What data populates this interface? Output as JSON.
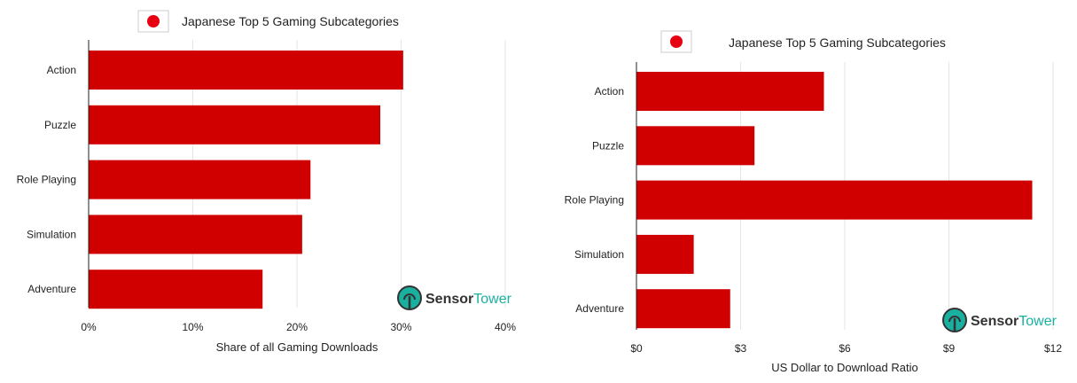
{
  "chart_data": [
    {
      "type": "bar",
      "orientation": "horizontal",
      "title": "Japanese Top 5 Gaming Subcategories",
      "categories": [
        "Action",
        "Puzzle",
        "Role Playing",
        "Simulation",
        "Adventure"
      ],
      "values": [
        30.2,
        28.0,
        21.3,
        20.5,
        16.7
      ],
      "unit": "%",
      "xlabel": "Share of all Gaming Downloads",
      "xlim": [
        0,
        40
      ],
      "xticks": [
        0,
        10,
        20,
        30,
        40
      ],
      "xtick_labels": [
        "0%",
        "10%",
        "20%",
        "30%",
        "40%"
      ],
      "grid": true,
      "bar_color": "#d10000",
      "flag_icon": "japan-flag-icon"
    },
    {
      "type": "bar",
      "orientation": "horizontal",
      "title": "Japanese Top 5 Gaming Subcategories",
      "categories": [
        "Action",
        "Puzzle",
        "Role Playing",
        "Simulation",
        "Adventure"
      ],
      "values": [
        5.4,
        3.4,
        11.4,
        1.65,
        2.7
      ],
      "unit": "$",
      "xlabel": "US Dollar to Download Ratio",
      "xlim": [
        0,
        12
      ],
      "xticks": [
        0,
        3,
        6,
        9,
        12
      ],
      "xtick_labels": [
        "$0",
        "$3",
        "$6",
        "$9",
        "$12"
      ],
      "grid": true,
      "bar_color": "#d10000",
      "flag_icon": "japan-flag-icon"
    }
  ],
  "branding": {
    "logo_icon": "sensor-tower-logo-icon",
    "brand_part1": "Sensor",
    "brand_part2": "Tower",
    "dark_color": "#333333",
    "accent_color": "#1ab0a0"
  }
}
